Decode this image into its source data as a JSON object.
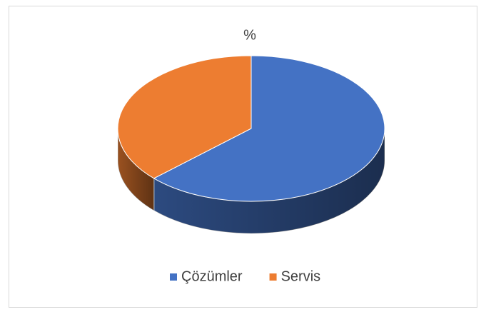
{
  "chart_data": {
    "type": "pie",
    "title": "%",
    "categories": [
      "Çözümler",
      "Servis"
    ],
    "values": [
      63,
      37
    ],
    "colors": [
      "#4472c4",
      "#ed7d31"
    ],
    "legend": "bottom"
  }
}
